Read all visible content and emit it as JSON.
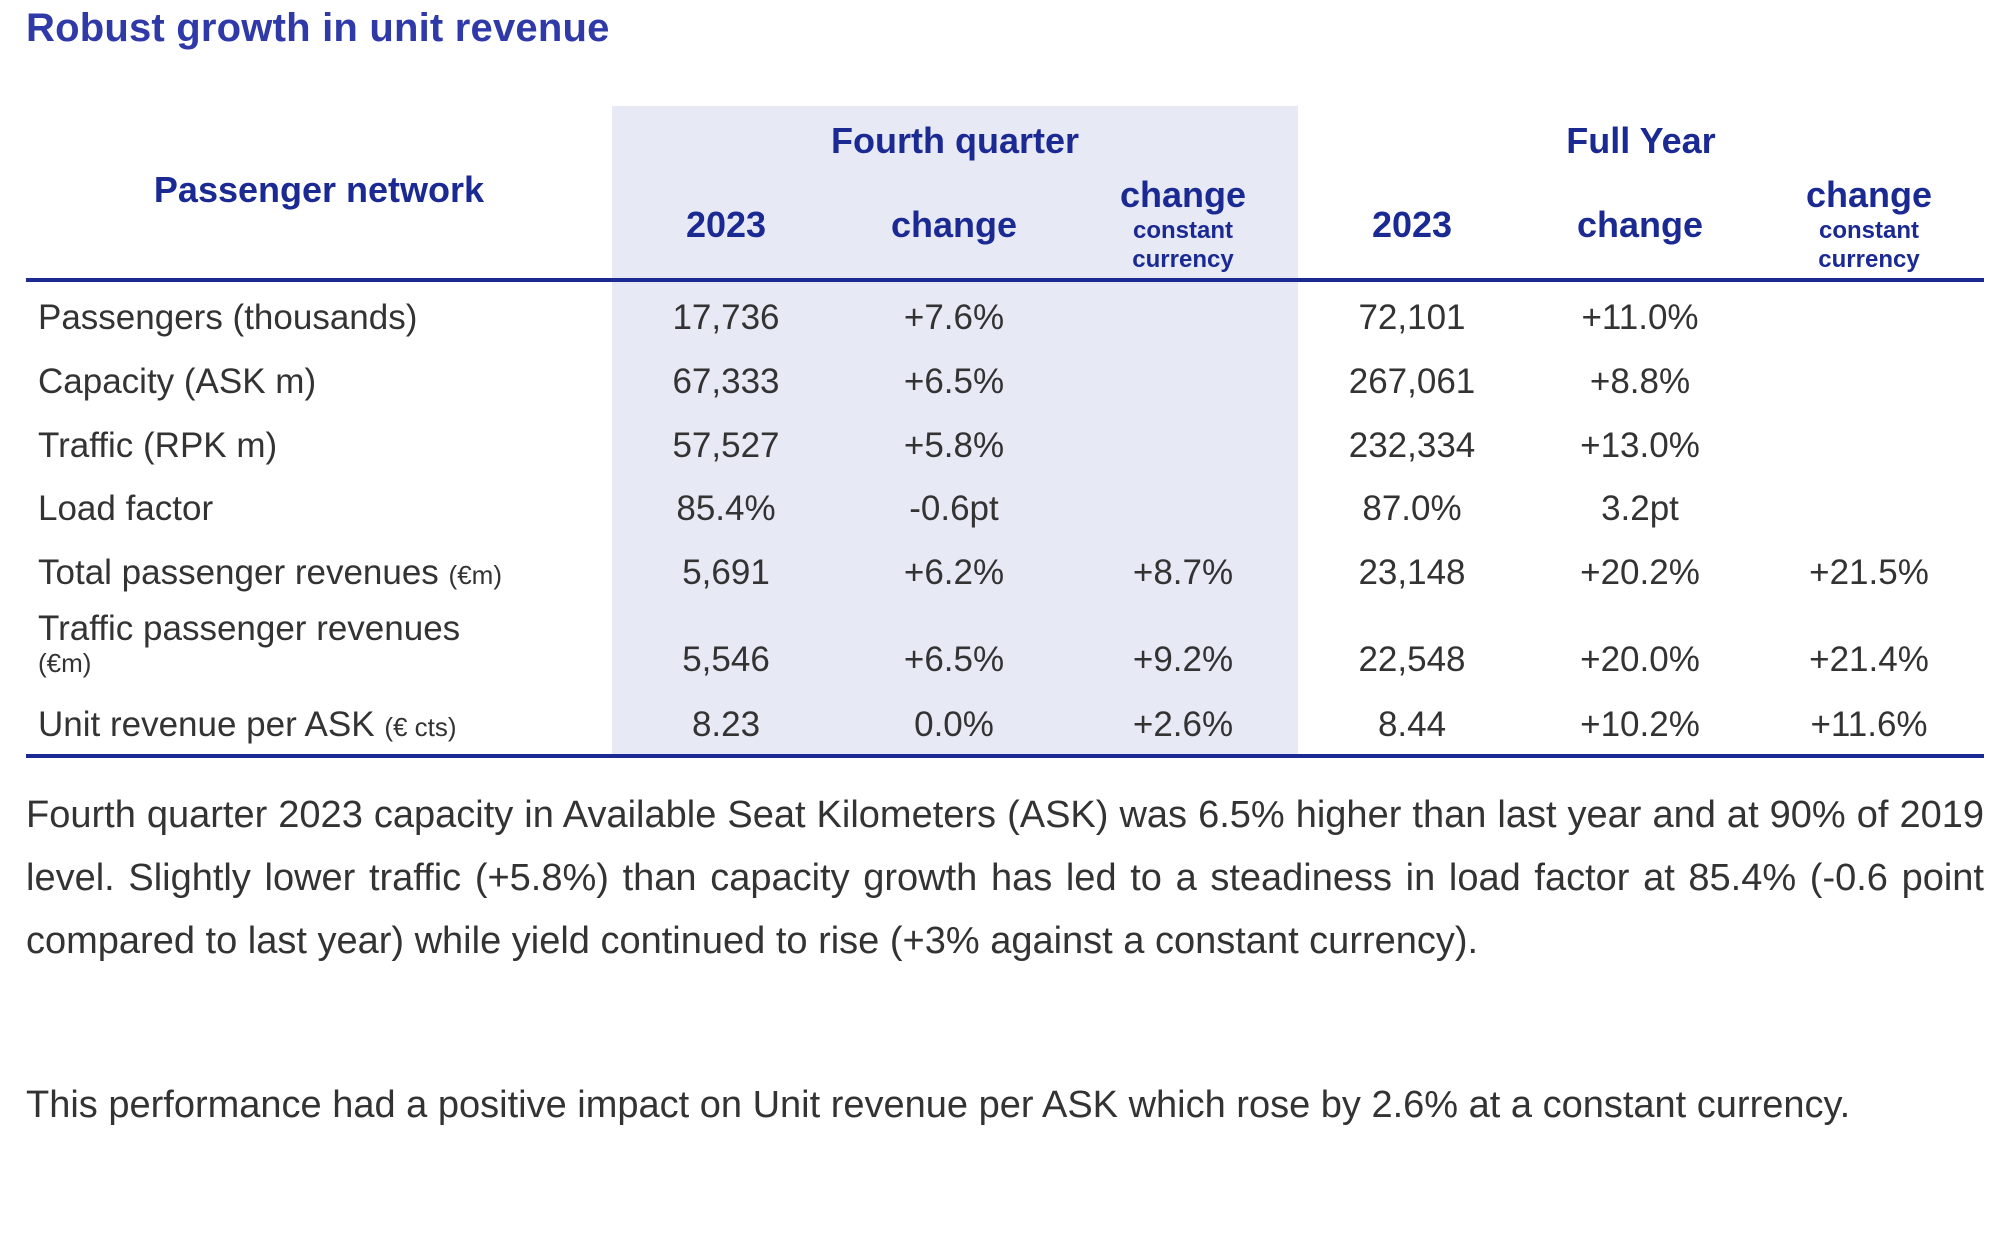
{
  "title": "Robust growth in unit revenue",
  "table": {
    "row_header": "Passenger network",
    "groups": {
      "q4": "Fourth quarter",
      "fy": "Full Year"
    },
    "columns": {
      "year": "2023",
      "change": "change",
      "cc_main": "change",
      "cc_sub1": "constant",
      "cc_sub2": "currency"
    },
    "rows": [
      {
        "label": "Passengers (thousands)",
        "unit": "",
        "q4_2023": "17,736",
        "q4_change": "+7.6%",
        "q4_cc": "",
        "fy_2023": "72,101",
        "fy_change": "+11.0%",
        "fy_cc": ""
      },
      {
        "label": "Capacity (ASK m)",
        "unit": "",
        "q4_2023": "67,333",
        "q4_change": "+6.5%",
        "q4_cc": "",
        "fy_2023": "267,061",
        "fy_change": "+8.8%",
        "fy_cc": ""
      },
      {
        "label": "Traffic (RPK m)",
        "unit": "",
        "q4_2023": "57,527",
        "q4_change": "+5.8%",
        "q4_cc": "",
        "fy_2023": "232,334",
        "fy_change": "+13.0%",
        "fy_cc": ""
      },
      {
        "label": "Load factor",
        "unit": "",
        "q4_2023": "85.4%",
        "q4_change": "-0.6pt",
        "q4_cc": "",
        "fy_2023": "87.0%",
        "fy_change": "3.2pt",
        "fy_cc": ""
      },
      {
        "label": "Total passenger revenues",
        "unit": "(€m)",
        "q4_2023": "5,691",
        "q4_change": "+6.2%",
        "q4_cc": "+8.7%",
        "fy_2023": "23,148",
        "fy_change": "+20.2%",
        "fy_cc": "+21.5%"
      },
      {
        "label": "Traffic passenger revenues",
        "unit": "(€m)",
        "q4_2023": "5,546",
        "q4_change": "+6.5%",
        "q4_cc": "+9.2%",
        "fy_2023": "22,548",
        "fy_change": "+20.0%",
        "fy_cc": "+21.4%"
      },
      {
        "label": "Unit revenue per ASK",
        "unit": "(€ cts)",
        "q4_2023": "8.23",
        "q4_change": "0.0%",
        "q4_cc": "+2.6%",
        "fy_2023": "8.44",
        "fy_change": "+10.2%",
        "fy_cc": "+11.6%"
      }
    ]
  },
  "paragraphs": [
    "Fourth quarter 2023 capacity in Available Seat Kilometers (ASK) was 6.5% higher than last year and at 90% of 2019 level. Slightly lower traffic (+5.8%) than capacity growth has led to a steadiness in load factor at 85.4%  (-0.6 point compared to last year) while yield continued to rise (+3% against a constant currency).",
    "This performance had a positive impact on Unit revenue per ASK which rose by 2.6% at a constant currency."
  ]
}
